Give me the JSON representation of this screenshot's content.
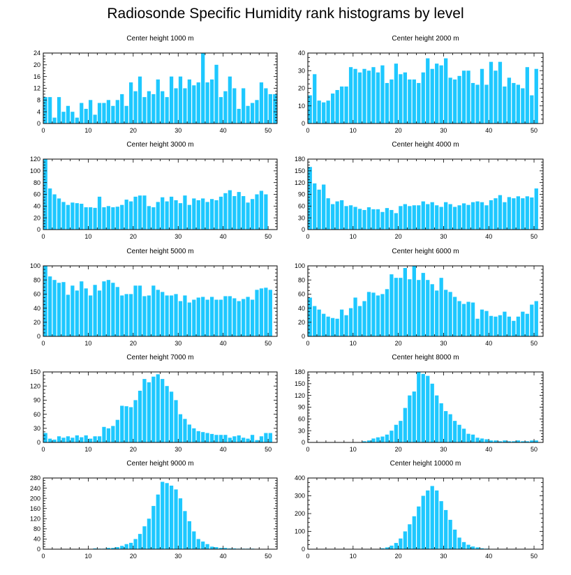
{
  "figure_title": "Radiosonde Specific Humidity rank histograms by level",
  "style": {
    "bar_color": "#1ec8ff",
    "axis_color": "#000000"
  },
  "chart_data": [
    {
      "type": "bar",
      "title": "Center height 1000 m",
      "xlim": [
        0,
        52
      ],
      "ylim": [
        0,
        24
      ],
      "xticks": [
        0,
        10,
        20,
        30,
        40,
        50
      ],
      "yticks": [
        0,
        4,
        8,
        12,
        16,
        20,
        24
      ],
      "values": [
        9,
        9,
        2,
        9,
        4,
        6,
        4,
        2,
        7,
        5,
        8,
        3,
        7,
        7,
        8,
        6,
        8,
        10,
        6,
        14,
        11,
        16,
        9,
        11,
        10,
        15,
        11,
        9,
        16,
        12,
        16,
        12,
        15,
        13,
        14,
        24,
        14,
        15,
        20,
        9,
        11,
        16,
        12,
        5,
        12,
        6,
        7,
        8,
        14,
        12,
        10,
        10
      ]
    },
    {
      "type": "bar",
      "title": "Center height 2000 m",
      "xlim": [
        0,
        52
      ],
      "ylim": [
        0,
        40
      ],
      "xticks": [
        0,
        10,
        20,
        30,
        40,
        50
      ],
      "yticks": [
        0,
        10,
        20,
        30,
        40
      ],
      "values": [
        16,
        28,
        13,
        12,
        13,
        17,
        19,
        21,
        21,
        32,
        31,
        29,
        31,
        30,
        32,
        29,
        33,
        23,
        25,
        34,
        28,
        29,
        25,
        25,
        23,
        29,
        37,
        31,
        34,
        33,
        37,
        26,
        25,
        27,
        30,
        30,
        23,
        22,
        31,
        22,
        35,
        30,
        35,
        21,
        26,
        23,
        22,
        20,
        32,
        16,
        31,
        0
      ]
    },
    {
      "type": "bar",
      "title": "Center height 3000 m",
      "xlim": [
        0,
        52
      ],
      "ylim": [
        0,
        120
      ],
      "xticks": [
        0,
        10,
        20,
        30,
        40,
        50
      ],
      "yticks": [
        0,
        20,
        40,
        60,
        80,
        100,
        120
      ],
      "values": [
        120,
        70,
        60,
        53,
        47,
        42,
        46,
        45,
        44,
        38,
        38,
        37,
        56,
        38,
        40,
        38,
        39,
        42,
        51,
        48,
        56,
        58,
        58,
        40,
        38,
        47,
        55,
        48,
        56,
        50,
        45,
        58,
        42,
        53,
        50,
        53,
        47,
        52,
        50,
        56,
        62,
        67,
        57,
        64,
        57,
        46,
        52,
        60,
        66,
        60,
        0,
        0
      ]
    },
    {
      "type": "bar",
      "title": "Center height 4000 m",
      "xlim": [
        0,
        52
      ],
      "ylim": [
        0,
        180
      ],
      "xticks": [
        0,
        10,
        20,
        30,
        40,
        50
      ],
      "yticks": [
        0,
        30,
        60,
        90,
        120,
        150,
        180
      ],
      "values": [
        160,
        118,
        102,
        115,
        80,
        65,
        72,
        75,
        60,
        62,
        58,
        53,
        50,
        57,
        52,
        52,
        45,
        55,
        50,
        42,
        60,
        65,
        60,
        62,
        62,
        72,
        65,
        70,
        62,
        58,
        70,
        65,
        58,
        62,
        67,
        63,
        70,
        72,
        70,
        62,
        75,
        80,
        88,
        70,
        83,
        80,
        85,
        80,
        85,
        82,
        105,
        0
      ]
    },
    {
      "type": "bar",
      "title": "Center height 5000 m",
      "xlim": [
        0,
        52
      ],
      "ylim": [
        0,
        100
      ],
      "xticks": [
        0,
        10,
        20,
        30,
        40,
        50
      ],
      "yticks": [
        0,
        20,
        40,
        60,
        80,
        100
      ],
      "values": [
        100,
        85,
        80,
        76,
        77,
        59,
        72,
        65,
        78,
        68,
        58,
        73,
        65,
        78,
        80,
        76,
        70,
        58,
        60,
        60,
        72,
        72,
        57,
        58,
        72,
        66,
        63,
        58,
        58,
        60,
        50,
        58,
        48,
        52,
        55,
        56,
        52,
        56,
        52,
        52,
        57,
        57,
        54,
        50,
        53,
        56,
        52,
        66,
        68,
        69,
        66,
        0
      ]
    },
    {
      "type": "bar",
      "title": "Center height 6000 m",
      "xlim": [
        0,
        52
      ],
      "ylim": [
        0,
        100
      ],
      "xticks": [
        0,
        10,
        20,
        30,
        40,
        50
      ],
      "yticks": [
        0,
        20,
        40,
        60,
        80,
        100
      ],
      "values": [
        55,
        43,
        38,
        32,
        28,
        26,
        25,
        38,
        30,
        40,
        55,
        43,
        50,
        63,
        62,
        58,
        60,
        67,
        88,
        83,
        83,
        97,
        81,
        100,
        80,
        90,
        80,
        74,
        65,
        83,
        66,
        63,
        56,
        50,
        46,
        49,
        48,
        25,
        38,
        36,
        29,
        28,
        30,
        35,
        28,
        22,
        28,
        35,
        32,
        45,
        50,
        0
      ]
    },
    {
      "type": "bar",
      "title": "Center height 7000 m",
      "xlim": [
        0,
        52
      ],
      "ylim": [
        0,
        150
      ],
      "xticks": [
        0,
        10,
        20,
        30,
        40,
        50
      ],
      "yticks": [
        0,
        30,
        60,
        90,
        120,
        150
      ],
      "values": [
        20,
        8,
        6,
        13,
        10,
        13,
        10,
        15,
        11,
        15,
        8,
        13,
        13,
        33,
        30,
        35,
        48,
        78,
        77,
        75,
        90,
        110,
        135,
        128,
        140,
        145,
        135,
        120,
        108,
        90,
        60,
        50,
        38,
        30,
        24,
        22,
        20,
        18,
        16,
        16,
        16,
        10,
        13,
        15,
        10,
        8,
        16,
        5,
        13,
        20,
        20,
        0
      ]
    },
    {
      "type": "bar",
      "title": "Center height 8000 m",
      "xlim": [
        0,
        52
      ],
      "ylim": [
        0,
        180
      ],
      "xticks": [
        0,
        10,
        20,
        30,
        40,
        50
      ],
      "yticks": [
        0,
        30,
        60,
        90,
        120,
        150,
        180
      ],
      "values": [
        0,
        0,
        0,
        0,
        0,
        0,
        0,
        0,
        0,
        0,
        0,
        0,
        3,
        5,
        10,
        13,
        15,
        20,
        30,
        45,
        55,
        88,
        120,
        130,
        180,
        175,
        170,
        150,
        120,
        100,
        80,
        72,
        55,
        45,
        35,
        22,
        20,
        12,
        10,
        8,
        5,
        5,
        3,
        5,
        3,
        3,
        5,
        3,
        3,
        5,
        5,
        0
      ]
    },
    {
      "type": "bar",
      "title": "Center height 9000 m",
      "xlim": [
        0,
        52
      ],
      "ylim": [
        0,
        280
      ],
      "xticks": [
        0,
        10,
        20,
        30,
        40,
        50
      ],
      "yticks": [
        0,
        40,
        80,
        120,
        160,
        200,
        240,
        280
      ],
      "values": [
        0,
        0,
        0,
        0,
        0,
        0,
        0,
        0,
        0,
        0,
        0,
        3,
        2,
        2,
        5,
        5,
        8,
        13,
        20,
        25,
        40,
        60,
        90,
        120,
        170,
        215,
        265,
        260,
        250,
        235,
        200,
        150,
        110,
        70,
        40,
        30,
        20,
        10,
        8,
        5,
        5,
        3,
        3,
        2,
        2,
        2,
        2,
        0,
        0,
        0,
        0,
        0
      ]
    },
    {
      "type": "bar",
      "title": "Center height 10000 m",
      "xlim": [
        0,
        52
      ],
      "ylim": [
        0,
        400
      ],
      "xticks": [
        0,
        10,
        20,
        30,
        40,
        50
      ],
      "yticks": [
        0,
        100,
        200,
        300,
        400
      ],
      "values": [
        0,
        0,
        0,
        0,
        0,
        0,
        0,
        0,
        0,
        0,
        0,
        0,
        0,
        0,
        0,
        0,
        5,
        10,
        20,
        35,
        60,
        100,
        140,
        185,
        240,
        300,
        330,
        355,
        330,
        270,
        220,
        165,
        110,
        65,
        40,
        25,
        15,
        10,
        5,
        3,
        2,
        2,
        0,
        0,
        0,
        0,
        0,
        0,
        0,
        0,
        0,
        0
      ]
    }
  ]
}
